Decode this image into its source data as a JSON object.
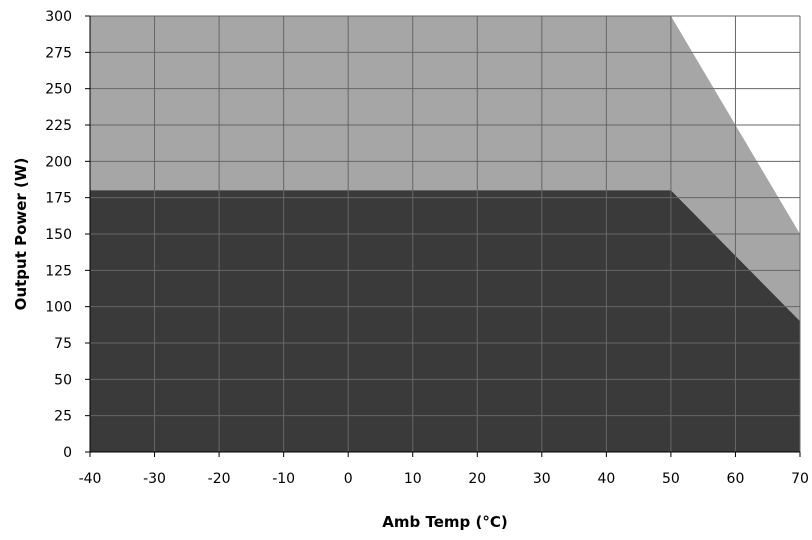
{
  "chart_data": {
    "type": "area",
    "xlabel": "Amb Temp (°C)",
    "ylabel": "Output Power (W)",
    "xlim": [
      -40,
      70
    ],
    "ylim": [
      0,
      300
    ],
    "xticks": [
      -40,
      -30,
      -20,
      -10,
      0,
      10,
      20,
      30,
      40,
      50,
      60,
      70
    ],
    "yticks": [
      0,
      25,
      50,
      75,
      100,
      125,
      150,
      175,
      200,
      225,
      250,
      275,
      300
    ],
    "grid": true,
    "legend": "none",
    "series": [
      {
        "x": [
          -40,
          50,
          70
        ],
        "y": [
          300,
          300,
          150
        ],
        "color": "#a6a6a6"
      },
      {
        "x": [
          -40,
          50,
          70
        ],
        "y": [
          180,
          180,
          90
        ],
        "color": "#3a3a3a"
      }
    ],
    "colors": {
      "grid": "#666666",
      "axis": "#000000",
      "plot_background": "#ffffff"
    }
  }
}
